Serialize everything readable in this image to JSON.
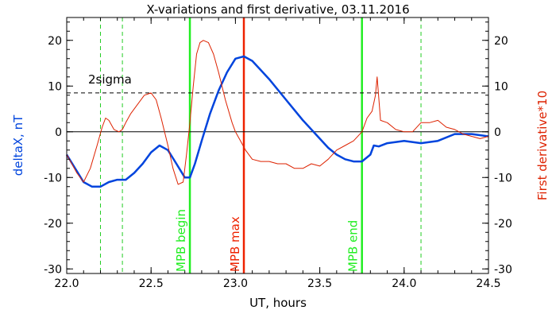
{
  "chart_data": {
    "type": "line",
    "title": "X-variations and first derivative, 03.11.2016",
    "xlabel": "UT, hours",
    "ylabel_left": "deltaX, nT",
    "ylabel_right": "First derivative*10",
    "xlim": [
      22.0,
      24.5
    ],
    "ylim": [
      -31,
      25
    ],
    "x_ticks": [
      22.0,
      22.5,
      23.0,
      23.5,
      24.0,
      24.5
    ],
    "x_tick_labels": [
      "22.0",
      "22.5",
      "23.0",
      "23.5",
      "24.0",
      "24.5"
    ],
    "y_ticks": [
      -30,
      -20,
      -10,
      0,
      10,
      20
    ],
    "y_tick_labels": [
      "-30",
      "-20",
      "-10",
      "0",
      "10",
      "20"
    ],
    "grid": false,
    "series": [
      {
        "label": "deltaX, nT",
        "color": "#0044dd",
        "x": [
          22.0,
          22.05,
          22.1,
          22.15,
          22.2,
          22.25,
          22.3,
          22.35,
          22.4,
          22.45,
          22.5,
          22.55,
          22.6,
          22.65,
          22.7,
          22.73,
          22.76,
          22.8,
          22.85,
          22.9,
          22.95,
          23.0,
          23.05,
          23.1,
          23.15,
          23.2,
          23.3,
          23.4,
          23.5,
          23.55,
          23.6,
          23.65,
          23.7,
          23.75,
          23.8,
          23.82,
          23.85,
          23.9,
          24.0,
          24.1,
          24.2,
          24.3,
          24.4,
          24.5
        ],
        "y": [
          -5,
          -8,
          -11,
          -12,
          -12,
          -11,
          -10.5,
          -10.5,
          -9,
          -7,
          -4.5,
          -3,
          -4,
          -7,
          -10,
          -10,
          -7,
          -2,
          4,
          9,
          13,
          16,
          16.5,
          15.5,
          13.5,
          11.5,
          7,
          2.5,
          -1.5,
          -3.5,
          -5,
          -6,
          -6.5,
          -6.5,
          -5,
          -3,
          -3.2,
          -2.5,
          -2,
          -2.5,
          -2,
          -0.5,
          -0.5,
          -1
        ]
      },
      {
        "label": "First derivative*10",
        "color": "#dd2200",
        "x": [
          22.0,
          22.03,
          22.06,
          22.1,
          22.14,
          22.18,
          22.21,
          22.23,
          22.25,
          22.28,
          22.31,
          22.33,
          22.35,
          22.38,
          22.42,
          22.46,
          22.5,
          22.53,
          22.56,
          22.6,
          22.63,
          22.66,
          22.69,
          22.71,
          22.73,
          22.75,
          22.77,
          22.79,
          22.81,
          22.84,
          22.87,
          22.9,
          22.94,
          22.98,
          23.0,
          23.03,
          23.06,
          23.1,
          23.15,
          23.2,
          23.25,
          23.3,
          23.35,
          23.4,
          23.45,
          23.5,
          23.55,
          23.6,
          23.65,
          23.7,
          23.75,
          23.78,
          23.81,
          23.83,
          23.84,
          23.86,
          23.9,
          23.95,
          24.0,
          24.05,
          24.1,
          24.15,
          24.2,
          24.25,
          24.3,
          24.35,
          24.4,
          24.45,
          24.5
        ],
        "y": [
          -5,
          -7,
          -9,
          -11,
          -8,
          -3,
          1,
          3,
          2.5,
          0.5,
          0,
          0.5,
          2,
          4,
          6,
          8,
          8.5,
          7,
          3,
          -3,
          -8,
          -11.5,
          -11,
          -5,
          2,
          10,
          17,
          19.5,
          20,
          19.5,
          17,
          13,
          7,
          2,
          0,
          -2,
          -4,
          -6,
          -6.5,
          -6.5,
          -7,
          -7,
          -8,
          -8,
          -7,
          -7.5,
          -6,
          -4,
          -3,
          -2,
          0,
          3,
          4.5,
          8,
          12,
          2.5,
          2,
          0.5,
          0,
          0,
          2,
          2,
          2.5,
          1,
          0.5,
          -0.5,
          -1,
          -1.5,
          -1
        ]
      }
    ],
    "reference_lines": [
      {
        "type": "horizontal",
        "y": 0,
        "color": "#000000",
        "style": "solid"
      },
      {
        "type": "horizontal",
        "y": 8.5,
        "color": "#000000",
        "style": "dashed",
        "label": "2sigma"
      }
    ],
    "markers": [
      {
        "x": 22.2,
        "color": "#22cc22",
        "style": "dashed"
      },
      {
        "x": 22.33,
        "color": "#22cc22",
        "style": "dashed"
      },
      {
        "x": 22.73,
        "color": "#22ee22",
        "style": "solid",
        "label": "MPB begin"
      },
      {
        "x": 23.05,
        "color": "#ee2200",
        "style": "solid",
        "label": "MPB max"
      },
      {
        "x": 23.75,
        "color": "#22ee22",
        "style": "solid",
        "label": "MPB end"
      },
      {
        "x": 24.1,
        "color": "#22cc22",
        "style": "dashed"
      }
    ]
  }
}
